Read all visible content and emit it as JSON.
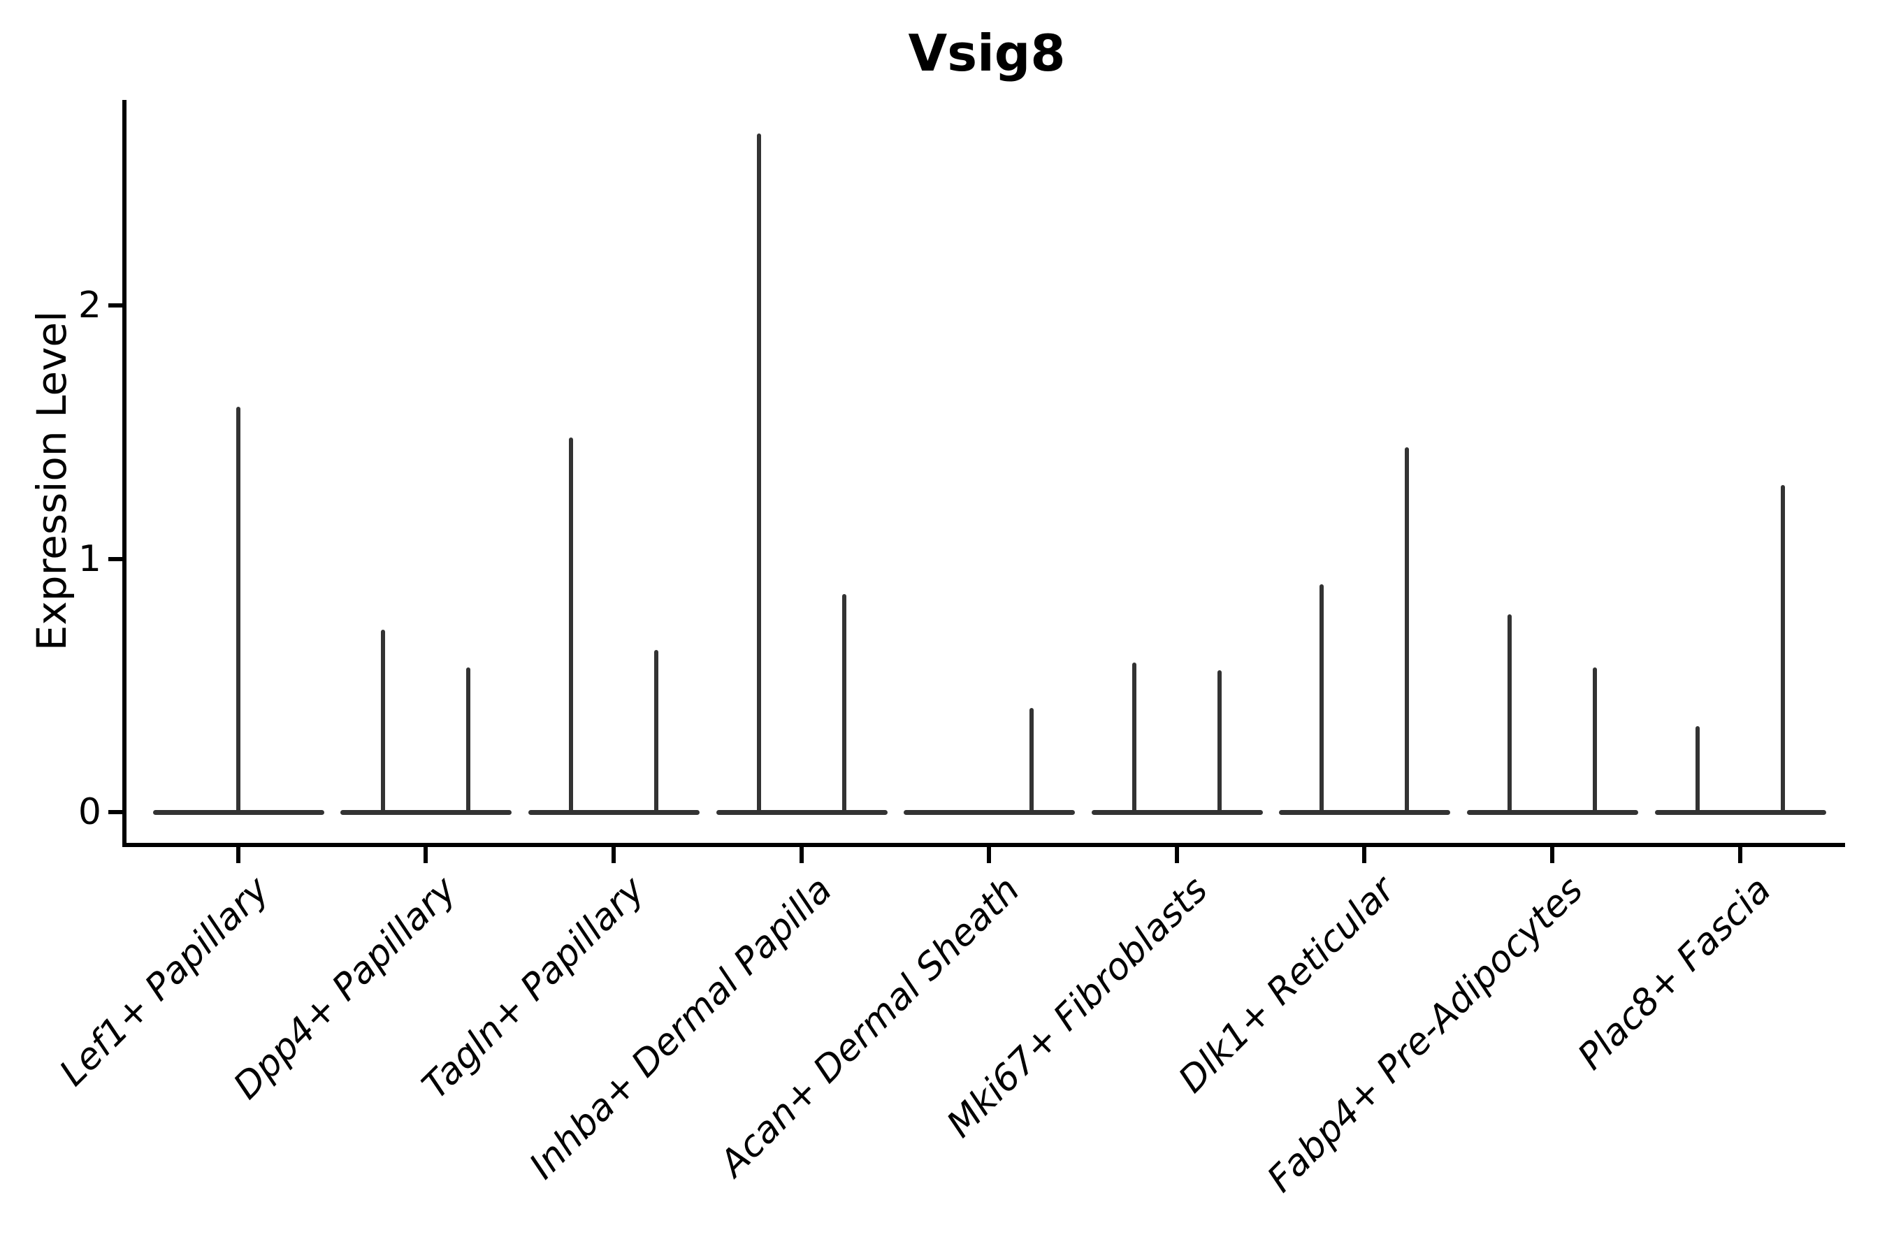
{
  "chart_data": {
    "type": "violin",
    "title": "Vsig8",
    "ylabel": "Expression Level",
    "xlabel": "",
    "yticks": [
      "0",
      "1",
      "2"
    ],
    "ylim": [
      -0.12,
      2.81
    ],
    "grid": false,
    "legend": "none",
    "style": "seurat-vlnplot, flat violins at zero with thin density spikes",
    "colors": {
      "violin": "#333333",
      "axis": "#000000",
      "background": "#ffffff",
      "text": "#000000"
    },
    "categories": [
      "Lef1+ Papillary",
      "Dpp4+ Papillary",
      "Tagln+ Papillary",
      "Inhba+ Dermal Papilla",
      "Acan+ Dermal Sheath",
      "Mki67+ Fibroblasts",
      "Dlk1+ Reticular",
      "Fabp4+ Pre-Adipocytes",
      "Plac8+ Fascia"
    ],
    "violins": [
      {
        "category": "Lef1+ Papillary",
        "spikes": [
          {
            "pos": "center",
            "value": 1.6
          }
        ]
      },
      {
        "category": "Dpp4+ Papillary",
        "spikes": [
          {
            "pos": "left",
            "value": 0.72
          },
          {
            "pos": "right",
            "value": 0.57
          }
        ]
      },
      {
        "category": "Tagln+ Papillary",
        "spikes": [
          {
            "pos": "left",
            "value": 1.48
          },
          {
            "pos": "right",
            "value": 0.64
          }
        ]
      },
      {
        "category": "Inhba+ Dermal Papilla",
        "spikes": [
          {
            "pos": "left",
            "value": 2.68
          },
          {
            "pos": "right",
            "value": 0.86
          }
        ]
      },
      {
        "category": "Acan+ Dermal Sheath",
        "spikes": [
          {
            "pos": "right",
            "value": 0.41
          }
        ]
      },
      {
        "category": "Mki67+ Fibroblasts",
        "spikes": [
          {
            "pos": "left",
            "value": 0.59
          },
          {
            "pos": "right",
            "value": 0.56
          }
        ]
      },
      {
        "category": "Dlk1+ Reticular",
        "spikes": [
          {
            "pos": "left",
            "value": 0.9
          },
          {
            "pos": "right",
            "value": 1.44
          }
        ]
      },
      {
        "category": "Fabp4+ Pre-Adipocytes",
        "spikes": [
          {
            "pos": "left",
            "value": 0.78
          },
          {
            "pos": "right",
            "value": 0.57
          }
        ]
      },
      {
        "category": "Plac8+ Fascia",
        "spikes": [
          {
            "pos": "left",
            "value": 0.34
          },
          {
            "pos": "right",
            "value": 1.29
          }
        ]
      }
    ]
  }
}
